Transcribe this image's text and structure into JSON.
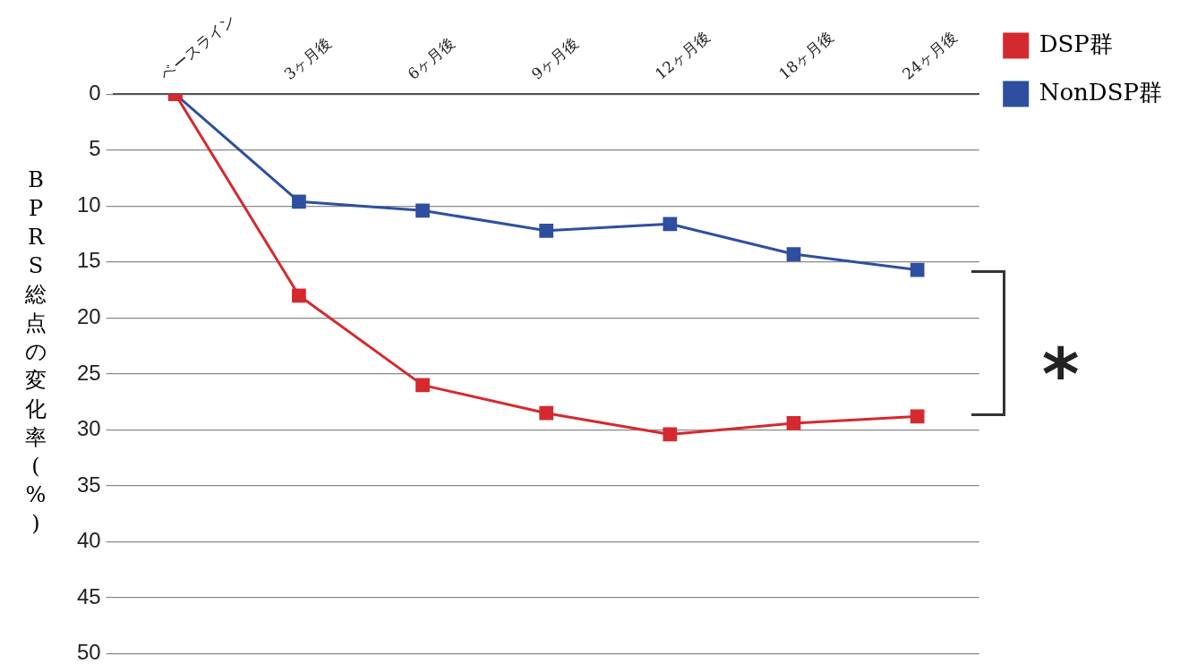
{
  "chart_data": {
    "type": "line",
    "ylabel": "BPRS総点の変化率(%)",
    "categories": [
      "ベースライン",
      "3ヶ月後",
      "6ヶ月後",
      "9ヶ月後",
      "12ヶ月後",
      "18ヶ月後",
      "24ヶ月後"
    ],
    "series": [
      {
        "name": "DSP群",
        "color": "#d42a2f",
        "values": [
          0,
          18.0,
          26.0,
          28.5,
          30.4,
          29.4,
          28.8
        ]
      },
      {
        "name": "NonDSP群",
        "color": "#2e4fa0",
        "values": [
          0,
          9.6,
          10.4,
          12.2,
          11.6,
          14.3,
          15.7
        ]
      }
    ],
    "ylim": [
      50,
      0
    ],
    "yticks": [
      0,
      5,
      10,
      15,
      20,
      25,
      30,
      35,
      40,
      45,
      50
    ],
    "grid": "y",
    "legend": "top right",
    "marker": "square",
    "line_style": "solid",
    "annotations": [
      "*"
    ]
  }
}
